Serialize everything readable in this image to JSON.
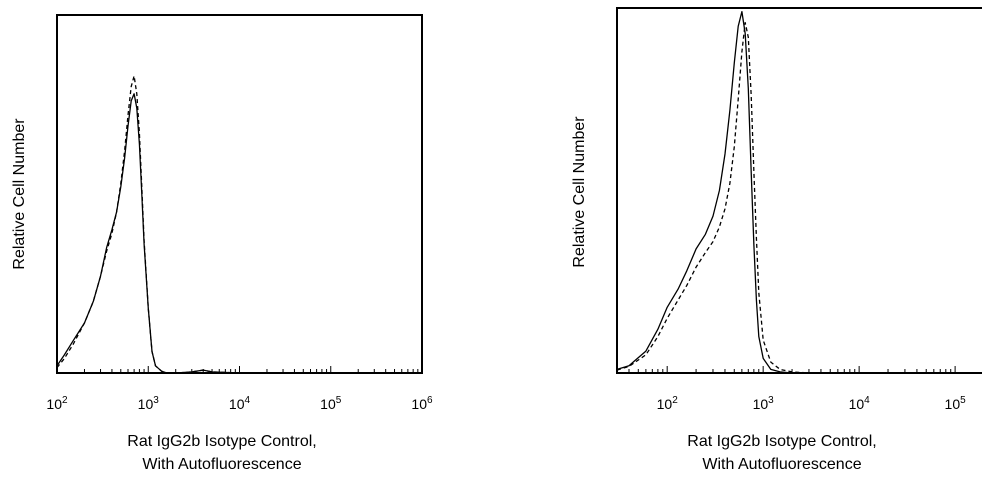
{
  "chart_data": [
    {
      "type": "line",
      "xlabel_lines": [
        "Rat IgG2b Isotype Control,",
        "With Autofluorescence"
      ],
      "ylabel": "Relative Cell Number",
      "x_scale": "log",
      "xlim": [
        100,
        1000000
      ],
      "ylim": [
        0,
        100
      ],
      "ticks": [
        {
          "value": 100,
          "base": "10",
          "exp": "2"
        },
        {
          "value": 1000,
          "base": "10",
          "exp": "3"
        },
        {
          "value": 10000,
          "base": "10",
          "exp": "4"
        },
        {
          "value": 100000,
          "base": "10",
          "exp": "5"
        },
        {
          "value": 1000000,
          "base": "10",
          "exp": "6"
        }
      ],
      "series": [
        {
          "style": "solid",
          "x": [
            100,
            120,
            150,
            200,
            250,
            300,
            350,
            400,
            450,
            500,
            550,
            600,
            650,
            700,
            750,
            800,
            850,
            900,
            1000,
            1100,
            1200,
            1400,
            1600,
            2000,
            3000,
            4000,
            5000,
            10000,
            100000,
            1000000
          ],
          "y": [
            2,
            5,
            9,
            14,
            20,
            27,
            35,
            40,
            45,
            52,
            60,
            69,
            76,
            78,
            74,
            64,
            50,
            36,
            18,
            6,
            2,
            0.5,
            0,
            0,
            0.3,
            0.8,
            0.3,
            0,
            0,
            0
          ]
        },
        {
          "style": "dashed",
          "x": [
            100,
            120,
            150,
            200,
            250,
            300,
            350,
            400,
            450,
            500,
            550,
            600,
            650,
            700,
            750,
            800,
            850,
            900,
            1000,
            1100,
            1200,
            1400,
            1600,
            2000,
            3000,
            4000,
            5000,
            10000,
            100000,
            1000000
          ],
          "y": [
            1.5,
            4,
            8,
            14,
            20,
            27,
            34,
            39,
            45,
            53,
            62,
            72,
            80,
            83,
            78,
            67,
            52,
            37,
            18,
            6,
            2,
            0.5,
            0,
            0,
            0.3,
            0.8,
            0.3,
            0,
            0,
            0
          ]
        }
      ]
    },
    {
      "type": "line",
      "xlabel_lines": [
        "Rat IgG2b Isotype Control,",
        "With Autofluorescence"
      ],
      "ylabel": "Relative Cell Number",
      "x_scale": "log",
      "xlim": [
        30,
        200000
      ],
      "ylim": [
        0,
        100
      ],
      "ticks": [
        {
          "value": 100,
          "base": "10",
          "exp": "2"
        },
        {
          "value": 1000,
          "base": "10",
          "exp": "3"
        },
        {
          "value": 10000,
          "base": "10",
          "exp": "4"
        },
        {
          "value": 100000,
          "base": "10",
          "exp": "5"
        }
      ],
      "series": [
        {
          "style": "solid",
          "x": [
            30,
            40,
            60,
            80,
            100,
            130,
            160,
            200,
            250,
            300,
            350,
            400,
            450,
            500,
            550,
            600,
            650,
            700,
            750,
            800,
            850,
            900,
            1000,
            1200,
            1500,
            2000,
            3000,
            10000,
            200000
          ],
          "y": [
            1,
            2,
            6,
            12,
            18,
            23,
            28,
            34,
            38,
            43,
            50,
            60,
            72,
            85,
            95,
            99,
            93,
            78,
            55,
            35,
            20,
            10,
            4,
            1,
            0.3,
            0,
            0,
            0,
            0
          ]
        },
        {
          "style": "dashed",
          "x": [
            30,
            40,
            60,
            80,
            100,
            130,
            160,
            200,
            250,
            300,
            350,
            400,
            450,
            500,
            550,
            600,
            650,
            700,
            750,
            800,
            850,
            900,
            1000,
            1200,
            1500,
            2000,
            3000,
            10000,
            200000
          ],
          "y": [
            0.8,
            1.8,
            5,
            10,
            15,
            20,
            24,
            29,
            33,
            36,
            40,
            45,
            52,
            62,
            75,
            88,
            96,
            92,
            76,
            55,
            37,
            22,
            9,
            3,
            1,
            0.3,
            0,
            0,
            0
          ]
        }
      ]
    }
  ]
}
